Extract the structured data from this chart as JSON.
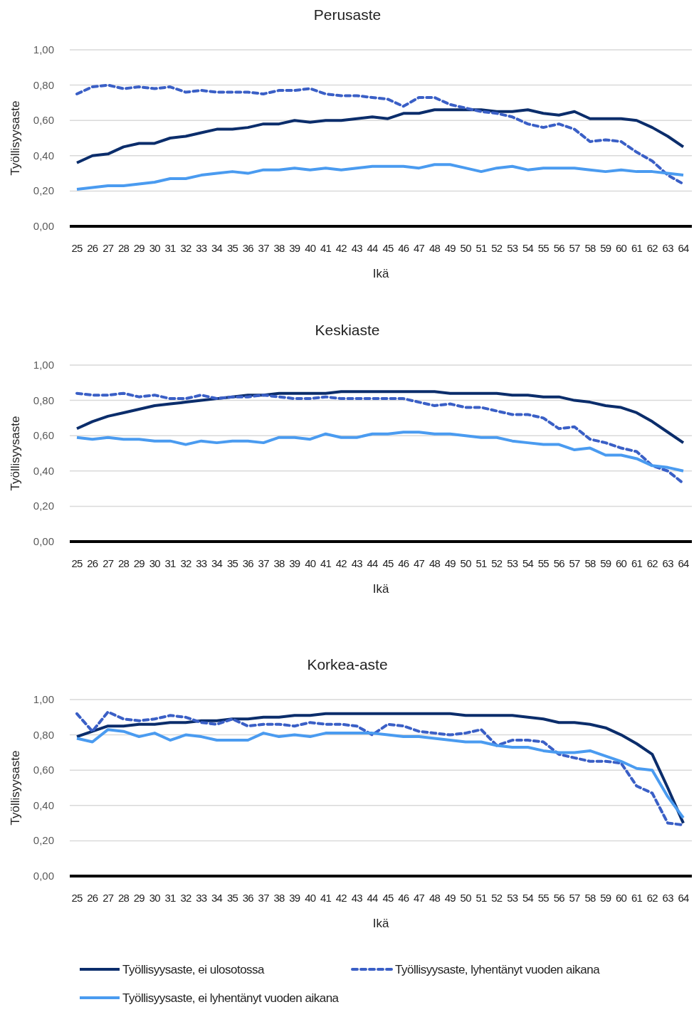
{
  "chart_data": [
    {
      "type": "line",
      "title": "Perusaste",
      "xlabel": "Ikä",
      "ylabel": "Työllisyysaste",
      "categories": [
        "25",
        "26",
        "27",
        "28",
        "29",
        "30",
        "31",
        "32",
        "33",
        "34",
        "35",
        "36",
        "37",
        "38",
        "39",
        "40",
        "41",
        "42",
        "43",
        "44",
        "45",
        "46",
        "47",
        "48",
        "49",
        "50",
        "51",
        "52",
        "53",
        "54",
        "55",
        "56",
        "57",
        "58",
        "59",
        "60",
        "61",
        "62",
        "63",
        "64"
      ],
      "ylim": [
        0,
        1
      ],
      "yticks": [
        {
          "value": 0,
          "label": "0,00"
        },
        {
          "value": 0.2,
          "label": "0,20"
        },
        {
          "value": 0.4,
          "label": "0,40"
        },
        {
          "value": 0.6,
          "label": "0,60"
        },
        {
          "value": 0.8,
          "label": "0,80"
        },
        {
          "value": 1,
          "label": "1,00"
        }
      ],
      "grid": "y",
      "legend": "bottom",
      "series": [
        {
          "name": "Työllisyysaste, ei ulosotossa",
          "color": "#0b2d6b",
          "line_style": "solid",
          "values": [
            0.36,
            0.4,
            0.41,
            0.45,
            0.47,
            0.47,
            0.5,
            0.51,
            0.53,
            0.55,
            0.55,
            0.56,
            0.58,
            0.58,
            0.6,
            0.59,
            0.6,
            0.6,
            0.61,
            0.62,
            0.61,
            0.64,
            0.64,
            0.66,
            0.66,
            0.66,
            0.66,
            0.65,
            0.65,
            0.66,
            0.64,
            0.63,
            0.65,
            0.61,
            0.61,
            0.61,
            0.6,
            0.56,
            0.51,
            0.45
          ]
        },
        {
          "name": "Työllisyysaste, lyhentänyt vuoden aikana",
          "color": "#3a5fc6",
          "line_style": "dashed",
          "values": [
            0.75,
            0.79,
            0.8,
            0.78,
            0.79,
            0.78,
            0.79,
            0.76,
            0.77,
            0.76,
            0.76,
            0.76,
            0.75,
            0.77,
            0.77,
            0.78,
            0.75,
            0.74,
            0.74,
            0.73,
            0.72,
            0.68,
            0.73,
            0.73,
            0.69,
            0.67,
            0.65,
            0.64,
            0.62,
            0.58,
            0.56,
            0.58,
            0.55,
            0.48,
            0.49,
            0.48,
            0.42,
            0.37,
            0.29,
            0.24
          ]
        },
        {
          "name": "Työllisyysaste, ei lyhentänyt vuoden aikana",
          "color": "#4a9bf0",
          "line_style": "solid",
          "values": [
            0.21,
            0.22,
            0.23,
            0.23,
            0.24,
            0.25,
            0.27,
            0.27,
            0.29,
            0.3,
            0.31,
            0.3,
            0.32,
            0.32,
            0.33,
            0.32,
            0.33,
            0.32,
            0.33,
            0.34,
            0.34,
            0.34,
            0.33,
            0.35,
            0.35,
            0.33,
            0.31,
            0.33,
            0.34,
            0.32,
            0.33,
            0.33,
            0.33,
            0.32,
            0.31,
            0.32,
            0.31,
            0.31,
            0.3,
            0.29
          ]
        }
      ]
    },
    {
      "type": "line",
      "title": "Keskiaste",
      "xlabel": "Ikä",
      "ylabel": "Työllisyysaste",
      "categories": [
        "25",
        "26",
        "27",
        "28",
        "29",
        "30",
        "31",
        "32",
        "33",
        "34",
        "35",
        "36",
        "37",
        "38",
        "39",
        "40",
        "41",
        "42",
        "43",
        "44",
        "45",
        "46",
        "47",
        "48",
        "49",
        "50",
        "51",
        "52",
        "53",
        "54",
        "55",
        "56",
        "57",
        "58",
        "59",
        "60",
        "61",
        "62",
        "63",
        "64"
      ],
      "ylim": [
        0,
        1
      ],
      "yticks": [
        {
          "value": 0,
          "label": "0,00"
        },
        {
          "value": 0.2,
          "label": "0,20"
        },
        {
          "value": 0.4,
          "label": "0,40"
        },
        {
          "value": 0.6,
          "label": "0,60"
        },
        {
          "value": 0.8,
          "label": "0,80"
        },
        {
          "value": 1,
          "label": "1,00"
        }
      ],
      "grid": "y",
      "series": [
        {
          "color": "#0b2d6b",
          "line_style": "solid",
          "values": [
            0.64,
            0.68,
            0.71,
            0.73,
            0.75,
            0.77,
            0.78,
            0.79,
            0.8,
            0.81,
            0.82,
            0.83,
            0.83,
            0.84,
            0.84,
            0.84,
            0.84,
            0.85,
            0.85,
            0.85,
            0.85,
            0.85,
            0.85,
            0.85,
            0.84,
            0.84,
            0.84,
            0.84,
            0.83,
            0.83,
            0.82,
            0.82,
            0.8,
            0.79,
            0.77,
            0.76,
            0.73,
            0.68,
            0.62,
            0.56
          ]
        },
        {
          "color": "#3a5fc6",
          "line_style": "dashed",
          "values": [
            0.84,
            0.83,
            0.83,
            0.84,
            0.82,
            0.83,
            0.81,
            0.81,
            0.83,
            0.81,
            0.82,
            0.82,
            0.83,
            0.82,
            0.81,
            0.81,
            0.82,
            0.81,
            0.81,
            0.81,
            0.81,
            0.81,
            0.79,
            0.77,
            0.78,
            0.76,
            0.76,
            0.74,
            0.72,
            0.72,
            0.7,
            0.64,
            0.65,
            0.58,
            0.56,
            0.53,
            0.51,
            0.43,
            0.4,
            0.33
          ]
        },
        {
          "color": "#4a9bf0",
          "line_style": "solid",
          "values": [
            0.59,
            0.58,
            0.59,
            0.58,
            0.58,
            0.57,
            0.57,
            0.55,
            0.57,
            0.56,
            0.57,
            0.57,
            0.56,
            0.59,
            0.59,
            0.58,
            0.61,
            0.59,
            0.59,
            0.61,
            0.61,
            0.62,
            0.62,
            0.61,
            0.61,
            0.6,
            0.59,
            0.59,
            0.57,
            0.56,
            0.55,
            0.55,
            0.52,
            0.53,
            0.49,
            0.49,
            0.47,
            0.43,
            0.42,
            0.4
          ]
        }
      ]
    },
    {
      "type": "line",
      "title": "Korkea-aste",
      "xlabel": "Ikä",
      "ylabel": "Työllisyysaste",
      "categories": [
        "25",
        "26",
        "27",
        "28",
        "29",
        "30",
        "31",
        "32",
        "33",
        "34",
        "35",
        "36",
        "37",
        "38",
        "39",
        "40",
        "41",
        "42",
        "43",
        "44",
        "45",
        "46",
        "47",
        "48",
        "49",
        "50",
        "51",
        "52",
        "53",
        "54",
        "55",
        "56",
        "57",
        "58",
        "59",
        "60",
        "61",
        "62",
        "63",
        "64"
      ],
      "ylim": [
        0,
        1
      ],
      "yticks": [
        {
          "value": 0,
          "label": "0,00"
        },
        {
          "value": 0.2,
          "label": "0,20"
        },
        {
          "value": 0.4,
          "label": "0,40"
        },
        {
          "value": 0.6,
          "label": "0,60"
        },
        {
          "value": 0.8,
          "label": "0,80"
        },
        {
          "value": 1,
          "label": "1,00"
        }
      ],
      "grid": "y",
      "series": [
        {
          "color": "#0b2d6b",
          "line_style": "solid",
          "values": [
            0.79,
            0.82,
            0.85,
            0.85,
            0.86,
            0.86,
            0.87,
            0.87,
            0.88,
            0.88,
            0.89,
            0.89,
            0.9,
            0.9,
            0.91,
            0.91,
            0.92,
            0.92,
            0.92,
            0.92,
            0.92,
            0.92,
            0.92,
            0.92,
            0.92,
            0.91,
            0.91,
            0.91,
            0.91,
            0.9,
            0.89,
            0.87,
            0.87,
            0.86,
            0.84,
            0.8,
            0.75,
            0.69,
            0.5,
            0.3
          ]
        },
        {
          "color": "#3a5fc6",
          "line_style": "dashed",
          "values": [
            0.92,
            0.82,
            0.93,
            0.89,
            0.88,
            0.89,
            0.91,
            0.9,
            0.87,
            0.86,
            0.89,
            0.85,
            0.86,
            0.86,
            0.85,
            0.87,
            0.86,
            0.86,
            0.85,
            0.8,
            0.86,
            0.85,
            0.82,
            0.81,
            0.8,
            0.81,
            0.83,
            0.74,
            0.77,
            0.77,
            0.76,
            0.69,
            0.67,
            0.65,
            0.65,
            0.64,
            0.51,
            0.47,
            0.3,
            0.29
          ]
        },
        {
          "color": "#4a9bf0",
          "line_style": "solid",
          "values": [
            0.78,
            0.76,
            0.83,
            0.82,
            0.79,
            0.81,
            0.77,
            0.8,
            0.79,
            0.77,
            0.77,
            0.77,
            0.81,
            0.79,
            0.8,
            0.79,
            0.81,
            0.81,
            0.81,
            0.81,
            0.8,
            0.79,
            0.79,
            0.78,
            0.77,
            0.76,
            0.76,
            0.74,
            0.73,
            0.73,
            0.71,
            0.7,
            0.7,
            0.71,
            0.68,
            0.65,
            0.61,
            0.6,
            0.45,
            0.33
          ]
        }
      ]
    }
  ]
}
